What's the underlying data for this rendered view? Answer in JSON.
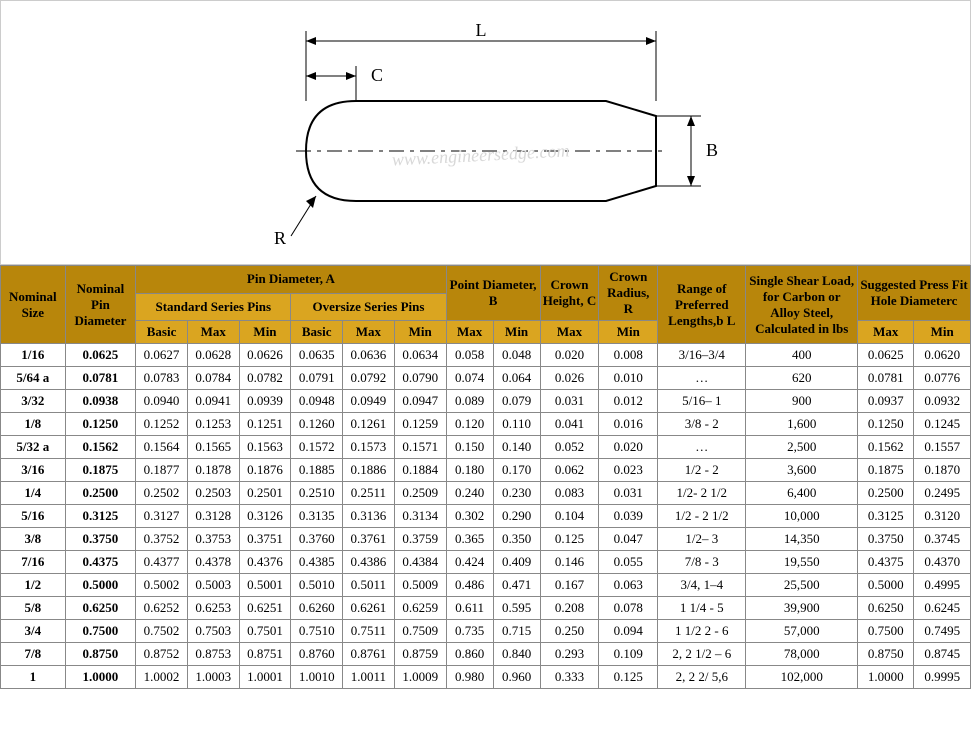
{
  "diagram": {
    "labels": {
      "L": "L",
      "C": "C",
      "B": "B",
      "R": "R"
    },
    "watermark": "www.engineersedge.com",
    "stroke": "#000000",
    "stroke_width": 2
  },
  "colors": {
    "header_dark": "#b8860b",
    "header_light": "#daa520",
    "border": "#888888",
    "bg": "#ffffff"
  },
  "headers": {
    "nominal_size": "Nominal Size",
    "nominal_pin_diameter": "Nominal Pin Diameter",
    "pin_diameter_a": "Pin Diameter, A",
    "standard_series": "Standard Series Pins",
    "oversize_series": "Oversize Series Pins",
    "point_diameter": "Point Diameter, B",
    "crown_height": "Crown Height, C",
    "crown_radius": "Crown Radius, R",
    "range_lengths": "Range of Preferred Lengths,b L",
    "single_shear": "Single Shear Load, for Carbon or Alloy Steel, Calculated in lbs",
    "press_fit": "Suggested Press Fit Hole Diameterc",
    "basic": "Basic",
    "max": "Max",
    "min": "Min"
  },
  "rows": [
    {
      "nom": "1/16",
      "dia": "0.0625",
      "sb": "0.0627",
      "smx": "0.0628",
      "smn": "0.0626",
      "ob": "0.0635",
      "omx": "0.0636",
      "omn": "0.0634",
      "pmx": "0.058",
      "pmn": "0.048",
      "chmx": "0.020",
      "crmn": "0.008",
      "range": "3/16–3/4",
      "shear": "400",
      "hmx": "0.0625",
      "hmn": "0.0620"
    },
    {
      "nom": "5/64 a",
      "dia": "0.0781",
      "sb": "0.0783",
      "smx": "0.0784",
      "smn": "0.0782",
      "ob": "0.0791",
      "omx": "0.0792",
      "omn": "0.0790",
      "pmx": "0.074",
      "pmn": "0.064",
      "chmx": "0.026",
      "crmn": "0.010",
      "range": "…",
      "shear": "620",
      "hmx": "0.0781",
      "hmn": "0.0776"
    },
    {
      "nom": "3/32",
      "dia": "0.0938",
      "sb": "0.0940",
      "smx": "0.0941",
      "smn": "0.0939",
      "ob": "0.0948",
      "omx": "0.0949",
      "omn": "0.0947",
      "pmx": "0.089",
      "pmn": "0.079",
      "chmx": "0.031",
      "crmn": "0.012",
      "range": "5/16– 1",
      "shear": "900",
      "hmx": "0.0937",
      "hmn": "0.0932"
    },
    {
      "nom": "1/8",
      "dia": "0.1250",
      "sb": "0.1252",
      "smx": "0.1253",
      "smn": "0.1251",
      "ob": "0.1260",
      "omx": "0.1261",
      "omn": "0.1259",
      "pmx": "0.120",
      "pmn": "0.110",
      "chmx": "0.041",
      "crmn": "0.016",
      "range": "3/8 - 2",
      "shear": "1,600",
      "hmx": "0.1250",
      "hmn": "0.1245"
    },
    {
      "nom": "5/32 a",
      "dia": "0.1562",
      "sb": "0.1564",
      "smx": "0.1565",
      "smn": "0.1563",
      "ob": "0.1572",
      "omx": "0.1573",
      "omn": "0.1571",
      "pmx": "0.150",
      "pmn": "0.140",
      "chmx": "0.052",
      "crmn": "0.020",
      "range": "…",
      "shear": "2,500",
      "hmx": "0.1562",
      "hmn": "0.1557"
    },
    {
      "nom": "3/16",
      "dia": "0.1875",
      "sb": "0.1877",
      "smx": "0.1878",
      "smn": "0.1876",
      "ob": "0.1885",
      "omx": "0.1886",
      "omn": "0.1884",
      "pmx": "0.180",
      "pmn": "0.170",
      "chmx": "0.062",
      "crmn": "0.023",
      "range": "1/2 - 2",
      "shear": "3,600",
      "hmx": "0.1875",
      "hmn": "0.1870"
    },
    {
      "nom": "1/4",
      "dia": "0.2500",
      "sb": "0.2502",
      "smx": "0.2503",
      "smn": "0.2501",
      "ob": "0.2510",
      "omx": "0.2511",
      "omn": "0.2509",
      "pmx": "0.240",
      "pmn": "0.230",
      "chmx": "0.083",
      "crmn": "0.031",
      "range": "1/2- 2 1/2",
      "shear": "6,400",
      "hmx": "0.2500",
      "hmn": "0.2495"
    },
    {
      "nom": "5/16",
      "dia": "0.3125",
      "sb": "0.3127",
      "smx": "0.3128",
      "smn": "0.3126",
      "ob": "0.3135",
      "omx": "0.3136",
      "omn": "0.3134",
      "pmx": "0.302",
      "pmn": "0.290",
      "chmx": "0.104",
      "crmn": "0.039",
      "range": "1/2 - 2 1/2",
      "shear": "10,000",
      "hmx": "0.3125",
      "hmn": "0.3120"
    },
    {
      "nom": "3/8",
      "dia": "0.3750",
      "sb": "0.3752",
      "smx": "0.3753",
      "smn": "0.3751",
      "ob": "0.3760",
      "omx": "0.3761",
      "omn": "0.3759",
      "pmx": "0.365",
      "pmn": "0.350",
      "chmx": "0.125",
      "crmn": "0.047",
      "range": "1/2– 3",
      "shear": "14,350",
      "hmx": "0.3750",
      "hmn": "0.3745"
    },
    {
      "nom": "7/16",
      "dia": "0.4375",
      "sb": "0.4377",
      "smx": "0.4378",
      "smn": "0.4376",
      "ob": "0.4385",
      "omx": "0.4386",
      "omn": "0.4384",
      "pmx": "0.424",
      "pmn": "0.409",
      "chmx": "0.146",
      "crmn": "0.055",
      "range": "7/8 - 3",
      "shear": "19,550",
      "hmx": "0.4375",
      "hmn": "0.4370"
    },
    {
      "nom": "1/2",
      "dia": "0.5000",
      "sb": "0.5002",
      "smx": "0.5003",
      "smn": "0.5001",
      "ob": "0.5010",
      "omx": "0.5011",
      "omn": "0.5009",
      "pmx": "0.486",
      "pmn": "0.471",
      "chmx": "0.167",
      "crmn": "0.063",
      "range": "3/4, 1–4",
      "shear": "25,500",
      "hmx": "0.5000",
      "hmn": "0.4995"
    },
    {
      "nom": "5/8",
      "dia": "0.6250",
      "sb": "0.6252",
      "smx": "0.6253",
      "smn": "0.6251",
      "ob": "0.6260",
      "omx": "0.6261",
      "omn": "0.6259",
      "pmx": "0.611",
      "pmn": "0.595",
      "chmx": "0.208",
      "crmn": "0.078",
      "range": "1 1/4 - 5",
      "shear": "39,900",
      "hmx": "0.6250",
      "hmn": "0.6245"
    },
    {
      "nom": "3/4",
      "dia": "0.7500",
      "sb": "0.7502",
      "smx": "0.7503",
      "smn": "0.7501",
      "ob": "0.7510",
      "omx": "0.7511",
      "omn": "0.7509",
      "pmx": "0.735",
      "pmn": "0.715",
      "chmx": "0.250",
      "crmn": "0.094",
      "range": "1 1/2 2 - 6",
      "shear": "57,000",
      "hmx": "0.7500",
      "hmn": "0.7495"
    },
    {
      "nom": "7/8",
      "dia": "0.8750",
      "sb": "0.8752",
      "smx": "0.8753",
      "smn": "0.8751",
      "ob": "0.8760",
      "omx": "0.8761",
      "omn": "0.8759",
      "pmx": "0.860",
      "pmn": "0.840",
      "chmx": "0.293",
      "crmn": "0.109",
      "range": "2, 2 1/2 – 6",
      "shear": "78,000",
      "hmx": "0.8750",
      "hmn": "0.8745"
    },
    {
      "nom": "1",
      "dia": "1.0000",
      "sb": "1.0002",
      "smx": "1.0003",
      "smn": "1.0001",
      "ob": "1.0010",
      "omx": "1.0011",
      "omn": "1.0009",
      "pmx": "0.980",
      "pmn": "0.960",
      "chmx": "0.333",
      "crmn": "0.125",
      "range": "2, 2 2/ 5,6",
      "shear": "102,000",
      "hmx": "1.0000",
      "hmn": "0.9995"
    }
  ]
}
